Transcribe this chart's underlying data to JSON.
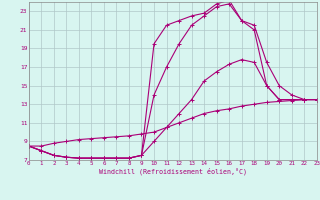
{
  "xlabel": "Windchill (Refroidissement éolien,°C)",
  "bg_color": "#d8f5f0",
  "grid_color": "#b0c8c8",
  "line_color": "#aa0077",
  "xmin": 0,
  "xmax": 23,
  "ymin": 7,
  "ymax": 24,
  "yticks": [
    7,
    9,
    11,
    13,
    15,
    17,
    19,
    21,
    23
  ],
  "xticks": [
    0,
    1,
    2,
    3,
    4,
    5,
    6,
    7,
    8,
    9,
    10,
    11,
    12,
    13,
    14,
    15,
    16,
    17,
    18,
    19,
    20,
    21,
    22,
    23
  ],
  "series": [
    {
      "x": [
        0,
        1,
        2,
        3,
        4,
        5,
        6,
        7,
        8,
        9,
        10,
        11,
        12,
        13,
        14,
        15,
        16,
        17,
        18,
        19,
        20,
        21,
        22,
        23
      ],
      "y": [
        8.5,
        8.0,
        7.5,
        7.3,
        7.2,
        7.2,
        7.2,
        7.2,
        7.2,
        7.5,
        19.5,
        21.5,
        22.0,
        22.5,
        22.8,
        23.8,
        24.2,
        22.0,
        21.5,
        17.5,
        15.0,
        14.0,
        13.5,
        13.5
      ]
    },
    {
      "x": [
        0,
        1,
        2,
        3,
        4,
        5,
        6,
        7,
        8,
        9,
        10,
        11,
        12,
        13,
        14,
        15,
        16,
        17,
        18,
        19,
        20,
        21,
        22,
        23
      ],
      "y": [
        8.5,
        8.0,
        7.5,
        7.3,
        7.2,
        7.2,
        7.2,
        7.2,
        7.2,
        7.5,
        14.0,
        17.0,
        19.5,
        21.5,
        22.5,
        23.5,
        23.8,
        22.0,
        21.0,
        15.0,
        13.5,
        13.5,
        13.5,
        13.5
      ]
    },
    {
      "x": [
        0,
        1,
        2,
        3,
        4,
        5,
        6,
        7,
        8,
        9,
        10,
        11,
        12,
        13,
        14,
        15,
        16,
        17,
        18,
        19,
        20,
        21,
        22,
        23
      ],
      "y": [
        8.5,
        8.0,
        7.5,
        7.3,
        7.2,
        7.2,
        7.2,
        7.2,
        7.2,
        7.5,
        9.0,
        10.5,
        12.0,
        13.5,
        15.5,
        16.5,
        17.3,
        17.8,
        17.5,
        15.0,
        13.5,
        13.5,
        13.5,
        13.5
      ]
    },
    {
      "x": [
        0,
        1,
        2,
        3,
        4,
        5,
        6,
        7,
        8,
        9,
        10,
        11,
        12,
        13,
        14,
        15,
        16,
        17,
        18,
        19,
        20,
        21,
        22,
        23
      ],
      "y": [
        8.5,
        8.5,
        8.8,
        9.0,
        9.2,
        9.3,
        9.4,
        9.5,
        9.6,
        9.8,
        10.0,
        10.5,
        11.0,
        11.5,
        12.0,
        12.3,
        12.5,
        12.8,
        13.0,
        13.2,
        13.3,
        13.4,
        13.5,
        13.5
      ]
    }
  ]
}
